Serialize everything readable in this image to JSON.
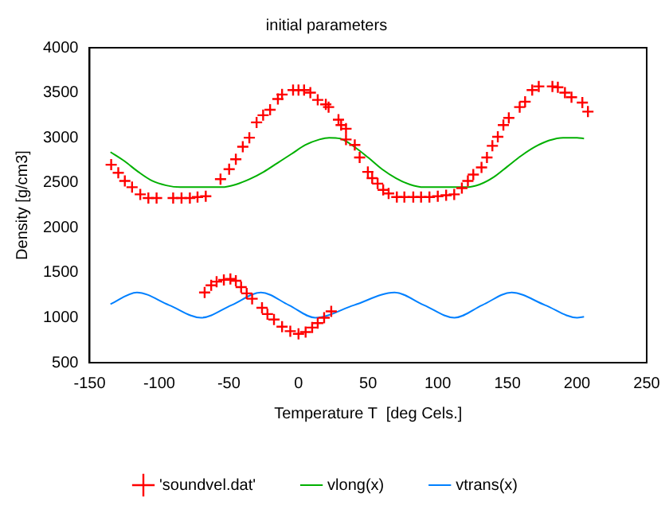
{
  "chart_data": {
    "type": "line",
    "title": "initial parameters",
    "xlabel": "Temperature T  [deg Cels.]",
    "ylabel": "Density [g/cm3]",
    "xlim": [
      -150,
      250
    ],
    "xticks": [
      -150,
      -100,
      -50,
      0,
      50,
      100,
      150,
      200,
      250
    ],
    "ylim": [
      500,
      4000
    ],
    "yticks": [
      500,
      1000,
      1500,
      2000,
      2500,
      3000,
      3500,
      4000
    ],
    "grid": false,
    "legend": "bottom",
    "series": [
      {
        "name": "'soundvel.dat'",
        "type": "scatter",
        "marker": "cross",
        "color": "#ff0000",
        "x": [
          -134.5,
          -129.4,
          -124.7,
          -119.5,
          -113.6,
          -107.8,
          -101.9,
          -90,
          -84,
          -78,
          -72.5,
          -66.6,
          -56,
          -49.8,
          -45,
          -40,
          -35.3,
          -30.1,
          -25.4,
          -20.4,
          -14.8,
          -11.8,
          -3.9,
          0,
          4,
          8.5,
          13.8,
          19.6,
          21.6,
          28.7,
          30.6,
          34.1,
          34.1,
          40.4,
          43.9,
          49.8,
          52.9,
          56.8,
          60.8,
          64.7,
          70.6,
          76,
          82.4,
          88,
          94,
          100,
          106,
          111.8,
          117.3,
          121.6,
          125.5,
          131.4,
          135.3,
          139.2,
          143.1,
          147.1,
          151,
          158.8,
          162.7,
          167.8,
          172.5,
          182.3,
          186.2,
          191.3,
          196,
          203.8,
          207.8,
          -67.4,
          -62.7,
          -58.8,
          -53.6,
          -48.9,
          -45,
          -41.2,
          -37.2,
          -33.3,
          -26.2,
          -22.3,
          -17.6,
          -11.8,
          -5.9,
          0,
          5.1,
          9.8,
          13.8,
          18.4,
          23.5
        ],
        "values": [
          2700,
          2610,
          2520,
          2450,
          2370,
          2330,
          2330,
          2330,
          2330,
          2330,
          2340,
          2350,
          2540,
          2650,
          2760,
          2900,
          3000,
          3170,
          3250,
          3310,
          3430,
          3480,
          3530,
          3530,
          3530,
          3500,
          3420,
          3370,
          3340,
          3200,
          3140,
          3100,
          2980,
          2920,
          2780,
          2620,
          2550,
          2490,
          2420,
          2380,
          2340,
          2340,
          2340,
          2340,
          2340,
          2350,
          2360,
          2370,
          2440,
          2520,
          2590,
          2670,
          2780,
          2910,
          3010,
          3140,
          3220,
          3340,
          3400,
          3530,
          3570,
          3570,
          3560,
          3500,
          3450,
          3390,
          3290,
          1280,
          1360,
          1400,
          1420,
          1430,
          1410,
          1340,
          1270,
          1210,
          1110,
          1040,
          980,
          900,
          850,
          820,
          840,
          890,
          940,
          1000,
          1070
        ]
      },
      {
        "name": "vlong(x)",
        "marker": "none",
        "color": "#00b000",
        "x": [
          -135,
          -125,
          -115,
          -105,
          -95,
          -85,
          -75,
          -65,
          -55,
          -45,
          -35,
          -25,
          -15,
          -5,
          5,
          15,
          22,
          30,
          40,
          50,
          60,
          70,
          80,
          90,
          100,
          110,
          120,
          130,
          140,
          150,
          160,
          170,
          180,
          190,
          200,
          205
        ],
        "values": [
          2840,
          2740,
          2620,
          2520,
          2470,
          2450,
          2450,
          2450,
          2450,
          2480,
          2540,
          2620,
          2720,
          2820,
          2920,
          2980,
          3000,
          2990,
          2900,
          2780,
          2650,
          2550,
          2480,
          2450,
          2450,
          2450,
          2450,
          2480,
          2560,
          2680,
          2800,
          2900,
          2970,
          3000,
          3000,
          2990
        ]
      },
      {
        "name": "vtrans(x)",
        "marker": "none",
        "color": "#0080ff",
        "x": [
          -135,
          -116,
          -93,
          -70,
          -48,
          -27,
          -7,
          12,
          40,
          69,
          90,
          112,
          132,
          153,
          177,
          200,
          205
        ],
        "values": [
          1150,
          1280,
          1140,
          1000,
          1140,
          1280,
          1140,
          1000,
          1140,
          1280,
          1140,
          1000,
          1140,
          1280,
          1140,
          1000,
          1010
        ]
      }
    ]
  }
}
